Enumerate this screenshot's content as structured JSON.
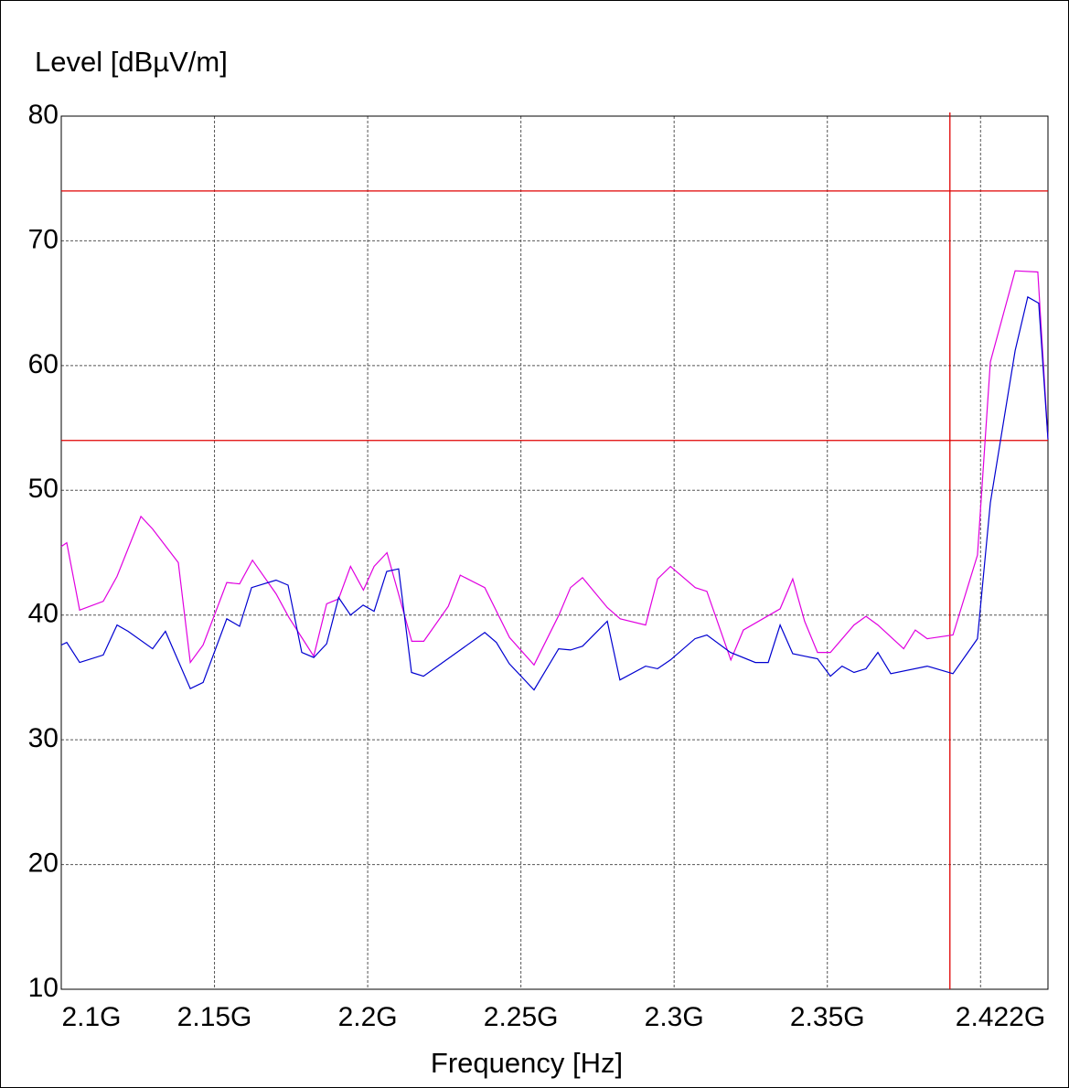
{
  "chart_data": {
    "type": "line",
    "y_label": "Level [dBµV/m]",
    "x_label": "Frequency [Hz]",
    "xlim": [
      2100000000,
      2422000000
    ],
    "ylim": [
      10,
      80
    ],
    "xticks": [
      {
        "value": 2100000000,
        "label": "2.1G"
      },
      {
        "value": 2150000000,
        "label": "2.15G"
      },
      {
        "value": 2200000000,
        "label": "2.2G"
      },
      {
        "value": 2250000000,
        "label": "2.25G"
      },
      {
        "value": 2300000000,
        "label": "2.3G"
      },
      {
        "value": 2350000000,
        "label": "2.35G"
      },
      {
        "value": 2400000000,
        "label": null
      },
      {
        "value": 2422000000,
        "label": "2.422G"
      }
    ],
    "yticks": [
      10,
      20,
      30,
      40,
      50,
      60,
      70,
      80
    ],
    "grid": true,
    "limit_lines": [
      {
        "value": 74,
        "color": "#e00000"
      },
      {
        "value": 54,
        "color": "#e00000"
      }
    ],
    "x_markers": [
      {
        "value": 2390000000,
        "color": "#e00000"
      }
    ],
    "series": [
      {
        "color": "#e000e0",
        "x": [
          2100000000,
          2101800000,
          2106000000,
          2113700000,
          2118200000,
          2126000000,
          2129800000,
          2138200000,
          2142100000,
          2146300000,
          2154000000,
          2158200000,
          2162400000,
          2170100000,
          2174300000,
          2182400000,
          2186600000,
          2190500000,
          2194400000,
          2198600000,
          2202100000,
          2206300000,
          2214400000,
          2218300000,
          2226300000,
          2230200000,
          2238200000,
          2246300000,
          2254300000,
          2262400000,
          2266200000,
          2270100000,
          2278200000,
          2282400000,
          2290700000,
          2294600000,
          2298800000,
          2306900000,
          2310700000,
          2318500000,
          2322600000,
          2334600000,
          2338700000,
          2342600000,
          2346800000,
          2351000000,
          2358700000,
          2362600000,
          2366500000,
          2374900000,
          2378700000,
          2382600000,
          2391000000,
          2399000000,
          2403200000,
          2411300000,
          2418700000,
          2422000000
        ],
        "values": [
          45.5,
          45.8,
          40.4,
          41.1,
          43.1,
          47.9,
          46.9,
          44.2,
          36.2,
          37.6,
          42.6,
          42.5,
          44.4,
          41.7,
          39.8,
          36.7,
          40.9,
          41.3,
          43.9,
          42.0,
          43.9,
          45.0,
          37.9,
          37.9,
          40.7,
          43.2,
          42.2,
          38.2,
          36.0,
          40.0,
          42.2,
          43.0,
          40.6,
          39.7,
          39.2,
          42.9,
          43.9,
          42.2,
          41.9,
          36.4,
          38.8,
          40.5,
          42.9,
          39.5,
          37.0,
          37.0,
          39.2,
          39.9,
          39.2,
          37.3,
          38.8,
          38.1,
          38.4,
          44.8,
          60.3,
          67.6,
          67.5,
          54.1
        ]
      },
      {
        "color": "#0000d0",
        "x": [
          2100000000,
          2101800000,
          2106000000,
          2113700000,
          2118200000,
          2121800000,
          2129800000,
          2134000000,
          2142100000,
          2146300000,
          2154000000,
          2158200000,
          2162100000,
          2170100000,
          2174000000,
          2178500000,
          2182400000,
          2186600000,
          2190500000,
          2194400000,
          2198500000,
          2202100000,
          2206200000,
          2210100000,
          2214300000,
          2218200000,
          2238200000,
          2242000000,
          2246200000,
          2254300000,
          2262300000,
          2266200000,
          2270100000,
          2278200000,
          2282300000,
          2290700000,
          2294600000,
          2298800000,
          2306800000,
          2310700000,
          2318400000,
          2326500000,
          2330700000,
          2334600000,
          2338700000,
          2342600000,
          2346800000,
          2351000000,
          2354800000,
          2358700000,
          2362600000,
          2366500000,
          2370700000,
          2382600000,
          2391000000,
          2399000000,
          2403200000,
          2411300000,
          2415400000,
          2419000000,
          2422000000
        ],
        "values": [
          37.6,
          37.8,
          36.2,
          36.8,
          39.2,
          38.7,
          37.3,
          38.7,
          34.1,
          34.6,
          39.7,
          39.1,
          42.2,
          42.8,
          42.4,
          37.0,
          36.6,
          37.7,
          41.4,
          40.0,
          40.8,
          40.3,
          43.5,
          43.7,
          35.4,
          35.1,
          38.6,
          37.8,
          36.1,
          34.0,
          37.3,
          37.2,
          37.5,
          39.5,
          34.8,
          35.9,
          35.7,
          36.4,
          38.1,
          38.4,
          37.0,
          36.2,
          36.2,
          39.2,
          36.9,
          36.7,
          36.5,
          35.1,
          35.9,
          35.4,
          35.7,
          37.0,
          35.3,
          35.9,
          35.3,
          38.1,
          49.0,
          61.2,
          65.5,
          65.0,
          54.1
        ]
      }
    ]
  }
}
